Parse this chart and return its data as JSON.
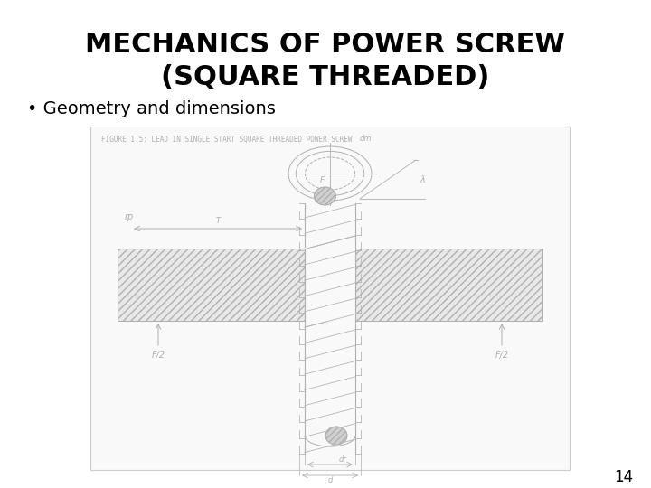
{
  "title_line1": "MECHANICS OF POWER SCREW",
  "title_line2": "(SQUARE THREADED)",
  "bullet": "Geometry and dimensions",
  "page_num": "14",
  "fig_caption": "FIGURE 1.5: LEAD IN SINGLE START SQUARE THREADED POWER SCREW",
  "bg_color": "#ffffff",
  "title_color": "#000000",
  "lc": "#b0b0b0",
  "lblc": "#b0b0b0",
  "title_fontsize": 22,
  "bullet_fontsize": 14,
  "page_fontsize": 12,
  "caption_fontsize": 5.5,
  "label_fontsize": 6
}
